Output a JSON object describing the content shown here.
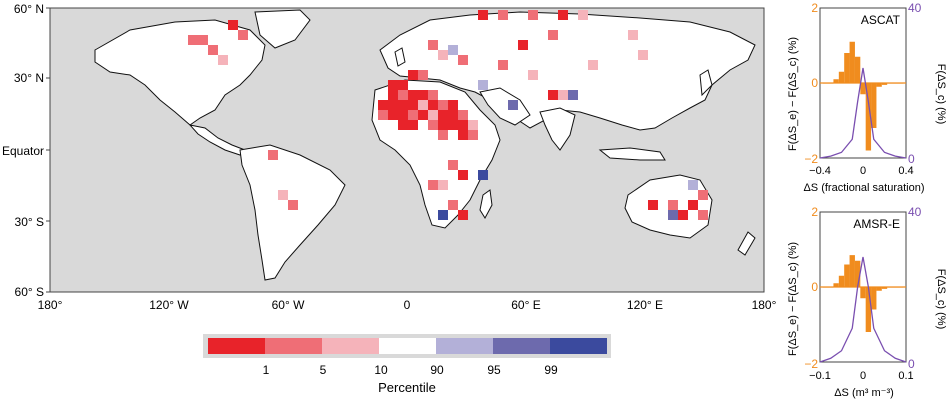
{
  "map": {
    "y_ticks": [
      "60° N",
      "30° N",
      "Equator",
      "30° S",
      "60° S"
    ],
    "x_ticks": [
      "180°",
      "120° W",
      "60° W",
      "0",
      "60° E",
      "120° E",
      "180°"
    ],
    "colorbar": {
      "colors": [
        "#e8232a",
        "#ef6e76",
        "#f5b3ba",
        "#ffffff",
        "#b3b0d8",
        "#6d6aad",
        "#3b4a9e"
      ],
      "tick_labels": [
        "1",
        "5",
        "10",
        "90",
        "95",
        "99"
      ],
      "label": "Percentile"
    },
    "ocean_color": "#d9d9d9",
    "land_color": "#ffffff"
  },
  "chart_data": [
    {
      "type": "bar",
      "panel": "ASCAT",
      "title": "ASCAT",
      "xlabel": "ΔS (fractional saturation)",
      "ylabel_left": "F(ΔS_e) − F(ΔS_c) (%)",
      "ylabel_right": "F(ΔS_c) (%)",
      "x_ticks": [
        "−0.4",
        "0",
        "0.4"
      ],
      "y_left_ticks": [
        "2",
        "0",
        "−2"
      ],
      "y_right_ticks": [
        "40",
        "20",
        "0"
      ],
      "xlim": [
        -0.4,
        0.4
      ],
      "ylim_left": [
        -2,
        2
      ],
      "ylim_right": [
        0,
        40
      ],
      "bar_color": "#f08c1e",
      "line_color": "#7a4fb0",
      "bars": {
        "x": [
          -0.35,
          -0.3,
          -0.25,
          -0.2,
          -0.15,
          -0.1,
          -0.05,
          0.0,
          0.05,
          0.1,
          0.15,
          0.2,
          0.25,
          0.3,
          0.35
        ],
        "values": [
          0.0,
          0.0,
          0.1,
          0.3,
          0.8,
          1.1,
          0.7,
          -0.3,
          -1.8,
          -1.2,
          -0.1,
          -0.05,
          0.0,
          0.0,
          0.0
        ]
      },
      "line": {
        "x": [
          -0.4,
          -0.3,
          -0.2,
          -0.1,
          -0.05,
          0.0,
          0.05,
          0.1,
          0.2,
          0.3,
          0.4
        ],
        "values": [
          0,
          0.5,
          1.5,
          5,
          15,
          24,
          15,
          5,
          1.5,
          0.5,
          0
        ]
      }
    },
    {
      "type": "bar",
      "panel": "AMSR-E",
      "title": "AMSR-E",
      "xlabel": "ΔS (m³ m⁻³)",
      "ylabel_left": "F(ΔS_e) − F(ΔS_c) (%)",
      "ylabel_right": "F(ΔS_c) (%)",
      "x_ticks": [
        "−0.1",
        "0",
        "0.1"
      ],
      "y_left_ticks": [
        "2",
        "0",
        "−2"
      ],
      "y_right_ticks": [
        "40",
        "20",
        "0"
      ],
      "xlim": [
        -0.1,
        0.1
      ],
      "ylim_left": [
        -2,
        2
      ],
      "ylim_right": [
        0,
        40
      ],
      "bar_color": "#f08c1e",
      "line_color": "#7a4fb0",
      "bars": {
        "x": [
          -0.0875,
          -0.075,
          -0.0625,
          -0.05,
          -0.0375,
          -0.025,
          -0.0125,
          0.0,
          0.0125,
          0.025,
          0.0375,
          0.05,
          0.0625,
          0.075,
          0.0875
        ],
        "values": [
          0.0,
          0.0,
          0.1,
          0.3,
          0.6,
          0.85,
          0.7,
          -0.3,
          -1.2,
          -0.6,
          -0.1,
          -0.05,
          0.0,
          0.0,
          0.0
        ]
      },
      "line": {
        "x": [
          -0.1,
          -0.075,
          -0.05,
          -0.025,
          -0.0125,
          0.0,
          0.0125,
          0.025,
          0.05,
          0.075,
          0.1
        ],
        "values": [
          0,
          1,
          3,
          9,
          20,
          28,
          20,
          9,
          3,
          1,
          0
        ]
      }
    }
  ]
}
